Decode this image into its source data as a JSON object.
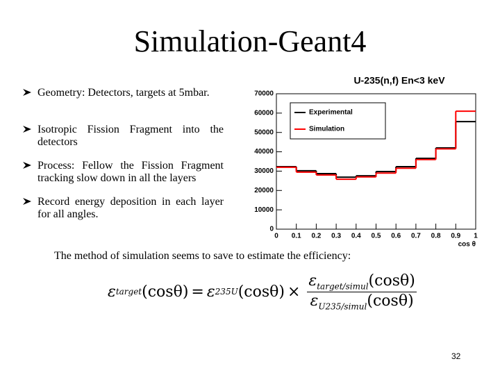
{
  "title": "Simulation-Geant4",
  "bullets": [
    "Geometry:   Detectors,   targets   at 5mbar.",
    "Isotropic Fission Fragment into the detectors",
    "Process: Fellow the Fission Fragment tracking slow down in all the layers",
    "Record energy deposition in each layer for all angles."
  ],
  "caption": "The method of simulation seems to save to estimate the efficiency:",
  "formula": {
    "lhs": {
      "symbol": "ε",
      "sub": "target",
      "arg": "(cosθ)"
    },
    "equals": "=",
    "factor": {
      "symbol": "ε",
      "sub": "235U",
      "arg": "(cosθ)"
    },
    "times": "×",
    "numerator": {
      "symbol": "ε",
      "sub": "target/simul",
      "arg": "(cosθ)"
    },
    "denominator": {
      "symbol": "ε",
      "sub": "U235/simul",
      "arg": "(cosθ)"
    }
  },
  "page_number": "32",
  "chart_data": {
    "type": "histogram",
    "title": "U-235(n,f)   En<3 keV",
    "x_label": "cos θ",
    "bins": [
      0,
      0.1,
      0.2,
      0.3,
      0.4,
      0.5,
      0.6,
      0.7,
      0.8,
      0.9,
      1
    ],
    "series": [
      {
        "name": "Experimental",
        "color": "#000000",
        "values": [
          32300,
          30200,
          28700,
          26900,
          27600,
          29800,
          32300,
          36600,
          42000,
          55600
        ]
      },
      {
        "name": "Simulation",
        "color": "#ff0000",
        "values": [
          32000,
          29500,
          28000,
          25800,
          27000,
          29000,
          31500,
          36000,
          41500,
          61000
        ]
      }
    ],
    "xlim": [
      0,
      1
    ],
    "xticks": [
      0,
      0.1,
      0.2,
      0.3,
      0.4,
      0.5,
      0.6,
      0.7,
      0.8,
      0.9,
      1
    ],
    "ylim": [
      0,
      70000
    ],
    "yticks": [
      0,
      10000,
      20000,
      30000,
      40000,
      50000,
      60000,
      70000
    ],
    "legend": "upper left"
  }
}
